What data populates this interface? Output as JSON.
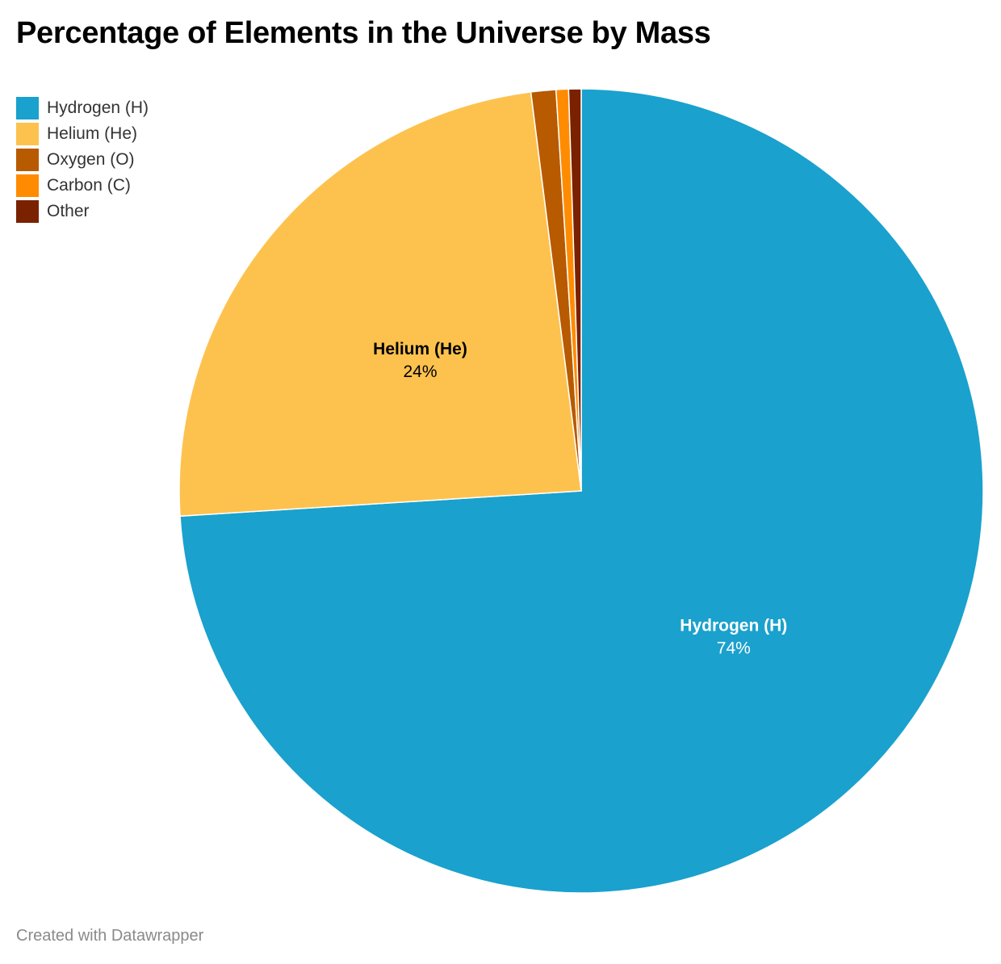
{
  "chart_data": {
    "type": "pie",
    "title": "Percentage of Elements in the Universe by Mass",
    "slices": [
      {
        "name": "Hydrogen (H)",
        "value": 74,
        "color": "#1aa1cd",
        "label_value": "74%",
        "label_color": "#ffffff",
        "show_label": true
      },
      {
        "name": "Helium (He)",
        "value": 24,
        "color": "#fdc24e",
        "label_value": "24%",
        "label_color": "#000000",
        "show_label": true
      },
      {
        "name": "Oxygen (O)",
        "value": 1,
        "color": "#b85a00",
        "label_value": "",
        "label_color": "#000000",
        "show_label": false
      },
      {
        "name": "Carbon (C)",
        "value": 0.5,
        "color": "#ff8c00",
        "label_value": "",
        "label_color": "#000000",
        "show_label": false
      },
      {
        "name": "Other",
        "value": 0.5,
        "color": "#7a2100",
        "label_value": "",
        "label_color": "#000000",
        "show_label": false
      }
    ],
    "legend_position": "top-left"
  },
  "footer": {
    "credit": "Created with Datawrapper"
  }
}
